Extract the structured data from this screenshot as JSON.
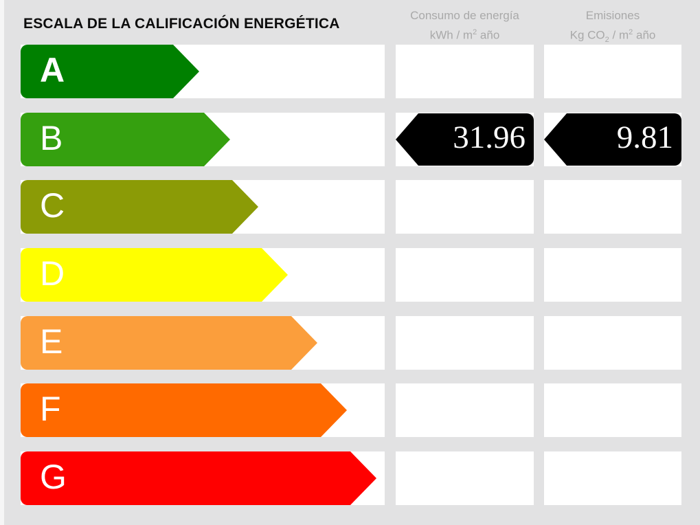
{
  "title": "ESCALA DE LA CALIFICACIÓN ENERGÉTICA",
  "columns": {
    "consumption": {
      "line1": "Consumo de energía",
      "unit_pre": "kWh / m",
      "unit_sup": "2",
      "unit_post": " año"
    },
    "emissions": {
      "line1": "Emisiones",
      "unit_pre": "Kg CO",
      "unit_sub": "2",
      "unit_mid": " / m",
      "unit_sup": "2",
      "unit_post": " año"
    }
  },
  "scale": [
    {
      "letter": "A",
      "color": "#008000",
      "arrow_width": 260,
      "letter_weight": "bold"
    },
    {
      "letter": "B",
      "color": "#35a00f",
      "arrow_width": 305,
      "letter_weight": "normal"
    },
    {
      "letter": "C",
      "color": "#8b9b06",
      "arrow_width": 346,
      "letter_weight": "normal"
    },
    {
      "letter": "D",
      "color": "#ffff00",
      "arrow_width": 389,
      "letter_weight": "normal"
    },
    {
      "letter": "E",
      "color": "#fb9e3c",
      "arrow_width": 432,
      "letter_weight": "normal"
    },
    {
      "letter": "F",
      "color": "#ff6a00",
      "arrow_width": 475,
      "letter_weight": "normal"
    },
    {
      "letter": "G",
      "color": "#ff0000",
      "arrow_width": 518,
      "letter_weight": "normal"
    }
  ],
  "result": {
    "rating_letter": "B",
    "consumption_value": "31.96",
    "emissions_value": "9.81",
    "arrow_color": "#000000",
    "value_text_color": "#ffffff"
  },
  "colors": {
    "background": "#e2e2e3",
    "stripe": "#ffffff",
    "header_text": "#a9a9a9",
    "title_text": "#0d0d0d"
  },
  "chart_data": {
    "type": "table",
    "title": "ESCALA DE LA CALIFICACIÓN ENERGÉTICA",
    "categories": [
      "A",
      "B",
      "C",
      "D",
      "E",
      "F",
      "G"
    ],
    "series": [
      {
        "name": "Consumo de energía (kWh / m2 año)",
        "values": [
          null,
          31.96,
          null,
          null,
          null,
          null,
          null
        ]
      },
      {
        "name": "Emisiones (Kg CO2 / m2 año)",
        "values": [
          null,
          9.81,
          null,
          null,
          null,
          null,
          null
        ]
      }
    ],
    "rating": "B",
    "legend_position": "none",
    "notes": "Energy rating scale arrows A (best) to G (worst); rated value B with consumption 31.96 and emissions 9.81"
  }
}
